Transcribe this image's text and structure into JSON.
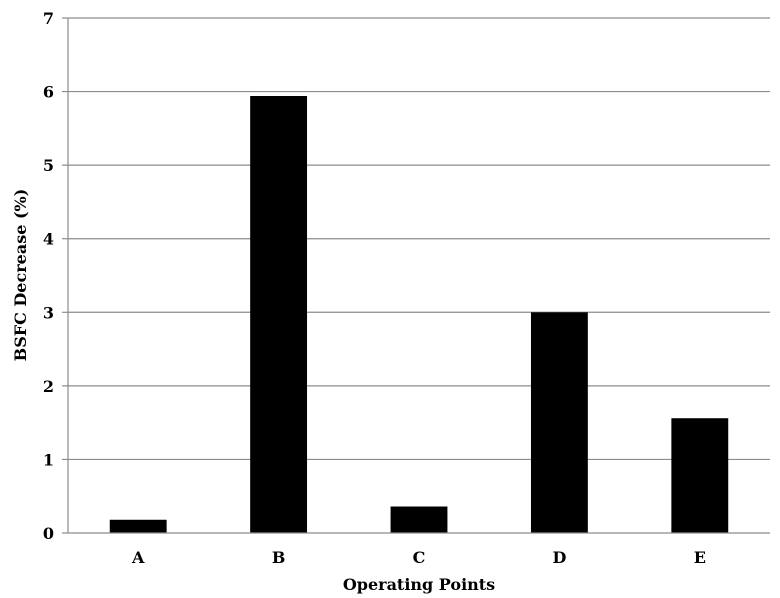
{
  "chart_data": {
    "type": "bar",
    "categories": [
      "A",
      "B",
      "C",
      "D",
      "E"
    ],
    "values": [
      0.18,
      5.94,
      0.36,
      3.0,
      1.56
    ],
    "xlabel": "Operating Points",
    "ylabel": "BSFC  Decrease (%)",
    "ylim": [
      0,
      7
    ],
    "yticks": [
      "0",
      "1",
      "2",
      "3",
      "4",
      "5",
      "6",
      "7"
    ],
    "grid": true,
    "bar_color": "#000000",
    "grid_color": "#8c8c8c",
    "legend": "none"
  }
}
